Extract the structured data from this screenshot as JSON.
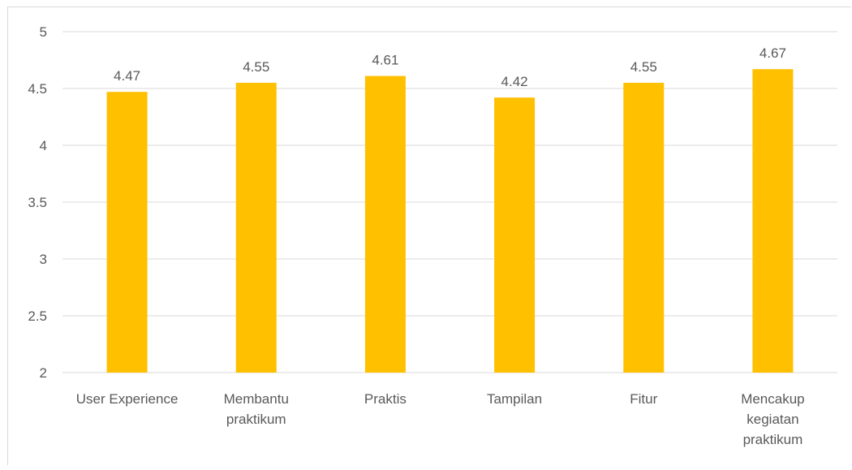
{
  "chart_data": {
    "type": "bar",
    "title": "",
    "xlabel": "",
    "ylabel": "",
    "categories": [
      [
        "User Experience"
      ],
      [
        "Membantu",
        "praktikum"
      ],
      [
        "Praktis"
      ],
      [
        "Tampilan"
      ],
      [
        "Fitur"
      ],
      [
        "Mencakup",
        "kegiatan",
        "praktikum"
      ]
    ],
    "values": [
      4.47,
      4.55,
      4.61,
      4.42,
      4.55,
      4.67
    ],
    "value_labels": [
      "4.47",
      "4.55",
      "4.61",
      "4.42",
      "4.55",
      "4.67"
    ],
    "ylim": [
      2,
      5
    ],
    "yticks": [
      2,
      2.5,
      3,
      3.5,
      4,
      4.5,
      5
    ],
    "ytick_labels": [
      "2",
      "2.5",
      "3",
      "3.5",
      "4",
      "4.5",
      "5"
    ],
    "grid": true,
    "legend": "none",
    "colors": {
      "bar": "#FFC000",
      "grid": "#d9d9d9",
      "text": "#595959"
    }
  }
}
